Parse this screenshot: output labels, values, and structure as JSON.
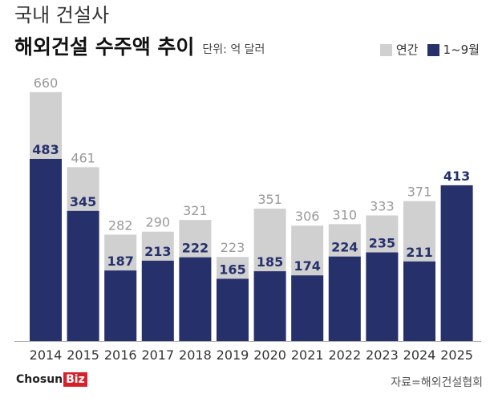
{
  "header": {
    "subtitle": "국내 건설사",
    "title": "해외건설 수주액 추이",
    "unit": "단위: 억 달러"
  },
  "legend": {
    "annual": "연간",
    "jan_sep": "1~9월"
  },
  "colors": {
    "annual": "#d0d0d0",
    "jan_sep": "#26306b",
    "annual_label": "#999999"
  },
  "footer": {
    "logo_main": "Chosun",
    "logo_accent": "Biz",
    "source": "자료=해외건설협회"
  },
  "chart_data": {
    "type": "bar",
    "title": "해외건설 수주액 추이",
    "ylabel": "억 달러",
    "categories": [
      "2014",
      "2015",
      "2016",
      "2017",
      "2018",
      "2019",
      "2020",
      "2021",
      "2022",
      "2023",
      "2024",
      "2025"
    ],
    "series": [
      {
        "name": "연간",
        "values": [
          660,
          461,
          282,
          290,
          321,
          223,
          351,
          306,
          310,
          333,
          371,
          null
        ]
      },
      {
        "name": "1~9월",
        "values": [
          483,
          345,
          187,
          213,
          222,
          165,
          185,
          174,
          224,
          235,
          211,
          413
        ]
      }
    ],
    "ylim": [
      0,
      700
    ],
    "grid": false,
    "legend_position": "top-right"
  }
}
